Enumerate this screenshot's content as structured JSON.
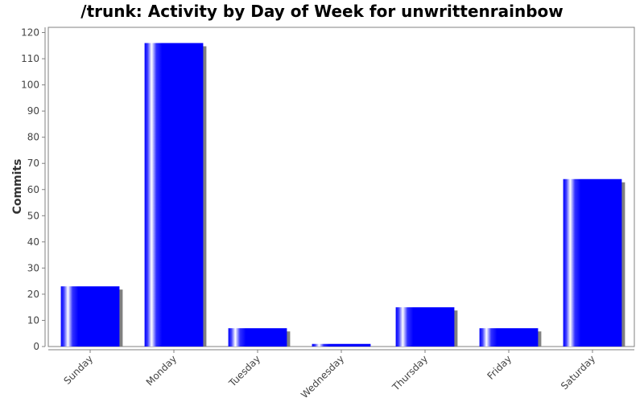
{
  "chart_data": {
    "type": "bar",
    "title": "/trunk: Activity by Day of Week for unwrittenrainbow",
    "xlabel": "",
    "ylabel": "Commits",
    "categories": [
      "Sunday",
      "Monday",
      "Tuesday",
      "Wednesday",
      "Thursday",
      "Friday",
      "Saturday"
    ],
    "values": [
      23,
      116,
      7,
      1,
      15,
      7,
      64
    ],
    "ylim": [
      0,
      122
    ],
    "yticks": [
      0,
      10,
      20,
      30,
      40,
      50,
      60,
      70,
      80,
      90,
      100,
      110,
      120
    ],
    "grid": false,
    "legend": "none",
    "colors": {
      "bar": "#0000ff",
      "highlight": "#ffffff",
      "shadow": "#808080",
      "axis": "#808080",
      "text": "#444444"
    }
  }
}
